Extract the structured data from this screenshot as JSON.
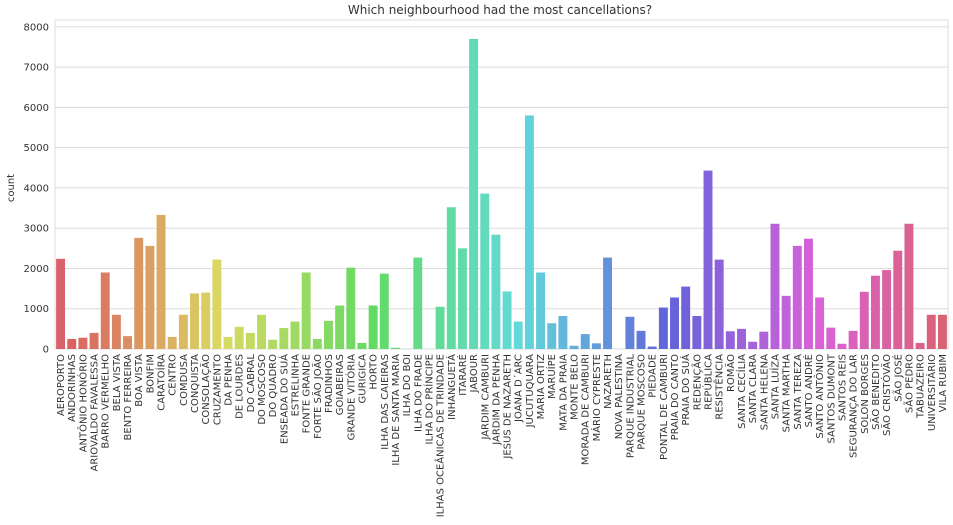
{
  "chart_data": {
    "type": "bar",
    "title": "Which neighbourhood had the most cancellations?",
    "y_label": "count",
    "categories": [
      "AEROPORTO",
      "ANDORINHAS",
      "ANTÔNIO HONÓRIO",
      "ARIOVALDO FAVALESSA",
      "BARRO VERMELHO",
      "BELA VISTA",
      "BENTO FERREIRA",
      "BOA VISTA",
      "BONFIM",
      "CARATOÍRA",
      "CENTRO",
      "COMDUSA",
      "CONQUISTA",
      "CONSOLAÇÃO",
      "CRUZAMENTO",
      "DA PENHA",
      "DE LOURDES",
      "DO CABRAL",
      "DO MOSCOSO",
      "DO QUADRO",
      "ENSEADA DO SUÁ",
      "ESTRELINHA",
      "FONTE GRANDE",
      "FORTE SÃO JOÃO",
      "FRADINHOS",
      "GOIABEIRAS",
      "GRANDE VITÓRIA",
      "GURIGICA",
      "HORTO",
      "ILHA DAS CAIEIRAS",
      "ILHA DE SANTA MARIA",
      "ILHA DO BOI",
      "ILHA DO FRADE",
      "ILHA DO PRÍNCIPE",
      "ILHAS OCEÂNICAS DE TRINDADE",
      "INHANGUETÁ",
      "ITARARÉ",
      "JABOUR",
      "JARDIM CAMBURI",
      "JARDIM DA PENHA",
      "JESUS DE NAZARETH",
      "JOANA D´ARC",
      "JUCUTUQUARA",
      "MARIA ORTIZ",
      "MARUÍPE",
      "MATA DA PRAIA",
      "MONTE BELO",
      "MORADA DE CAMBURI",
      "MÁRIO CYPRESTE",
      "NAZARETH",
      "NOVA PALESTINA",
      "PARQUE INDUSTRIAL",
      "PARQUE MOSCOSO",
      "PIEDADE",
      "PONTAL DE CAMBURI",
      "PRAIA DO CANTO",
      "PRAIA DO SUÁ",
      "REDENÇÃO",
      "REPÚBLICA",
      "RESISTÊNCIA",
      "ROMÃO",
      "SANTA CECÍLIA",
      "SANTA CLARA",
      "SANTA HELENA",
      "SANTA LUÍZA",
      "SANTA MARTHA",
      "SANTA TEREZA",
      "SANTO ANDRÉ",
      "SANTO ANTÔNIO",
      "SANTOS DUMONT",
      "SANTOS REIS",
      "SEGURANÇA DO LAR",
      "SOLON BORGES",
      "SÃO BENEDITO",
      "SÃO CRISTÓVÃO",
      "SÃO JOSÉ",
      "SÃO PEDRO",
      "TABUAZEIRO",
      "UNIVERSITÁRIO",
      "VILA RUBIM"
    ],
    "values": [
      2240,
      250,
      280,
      400,
      1900,
      850,
      320,
      2760,
      2560,
      3330,
      300,
      850,
      1380,
      1400,
      2220,
      300,
      550,
      400,
      850,
      230,
      520,
      680,
      1900,
      250,
      700,
      1080,
      2020,
      150,
      1080,
      1870,
      30,
      5,
      2270,
      2,
      1050,
      3520,
      2500,
      7700,
      3860,
      2840,
      1430,
      680,
      5800,
      1900,
      640,
      820,
      80,
      370,
      140,
      2270,
      1,
      800,
      450,
      60,
      1030,
      1280,
      1550,
      820,
      4430,
      2220,
      440,
      500,
      180,
      430,
      3110,
      1320,
      2560,
      2740,
      1280,
      530,
      130,
      450,
      1420,
      1820,
      1960,
      2440,
      3110,
      150,
      850,
      850
    ],
    "palette": "husl",
    "ylim": [
      0,
      8170
    ],
    "yticks": [
      0,
      1000,
      2000,
      3000,
      4000,
      5000,
      6000,
      7000,
      8000
    ],
    "grid": true
  }
}
